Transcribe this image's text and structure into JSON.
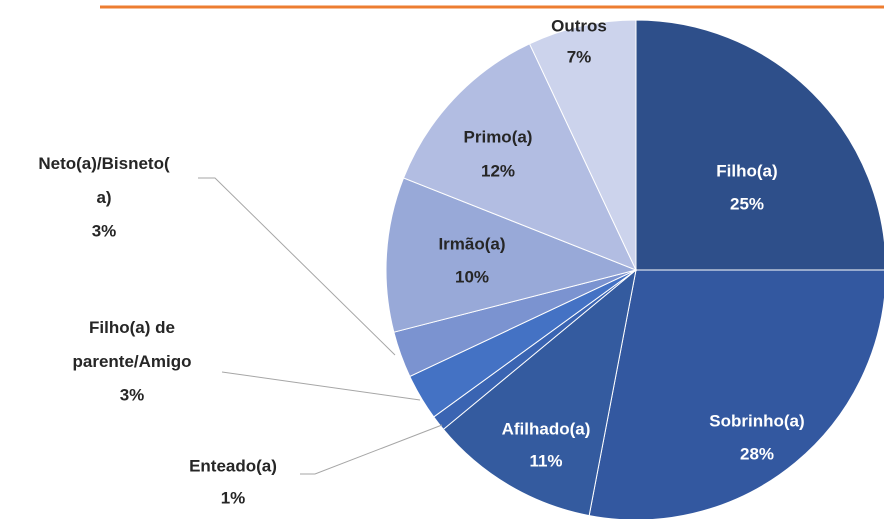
{
  "chart_data": {
    "type": "pie",
    "categories": [
      "Filho(a)",
      "Sobrinho(a)",
      "Afilhado(a)",
      "Enteado(a)",
      "Filho(a) de\nparente/Amigo",
      "Neto(a)/Bisneto(\na)",
      "Irmão(a)",
      "Primo(a)",
      "Outros"
    ],
    "values": [
      25,
      28,
      11,
      1,
      3,
      3,
      10,
      12,
      7
    ],
    "value_labels": [
      "25%",
      "28%",
      "11%",
      "1%",
      "3%",
      "3%",
      "10%",
      "12%",
      "7%"
    ],
    "colors": [
      "#2e4f8a",
      "#3358a0",
      "#345b9f",
      "#3a64b2",
      "#4472c4",
      "#7b93d0",
      "#98a9d8",
      "#b2bde2",
      "#ccd3ec"
    ]
  }
}
